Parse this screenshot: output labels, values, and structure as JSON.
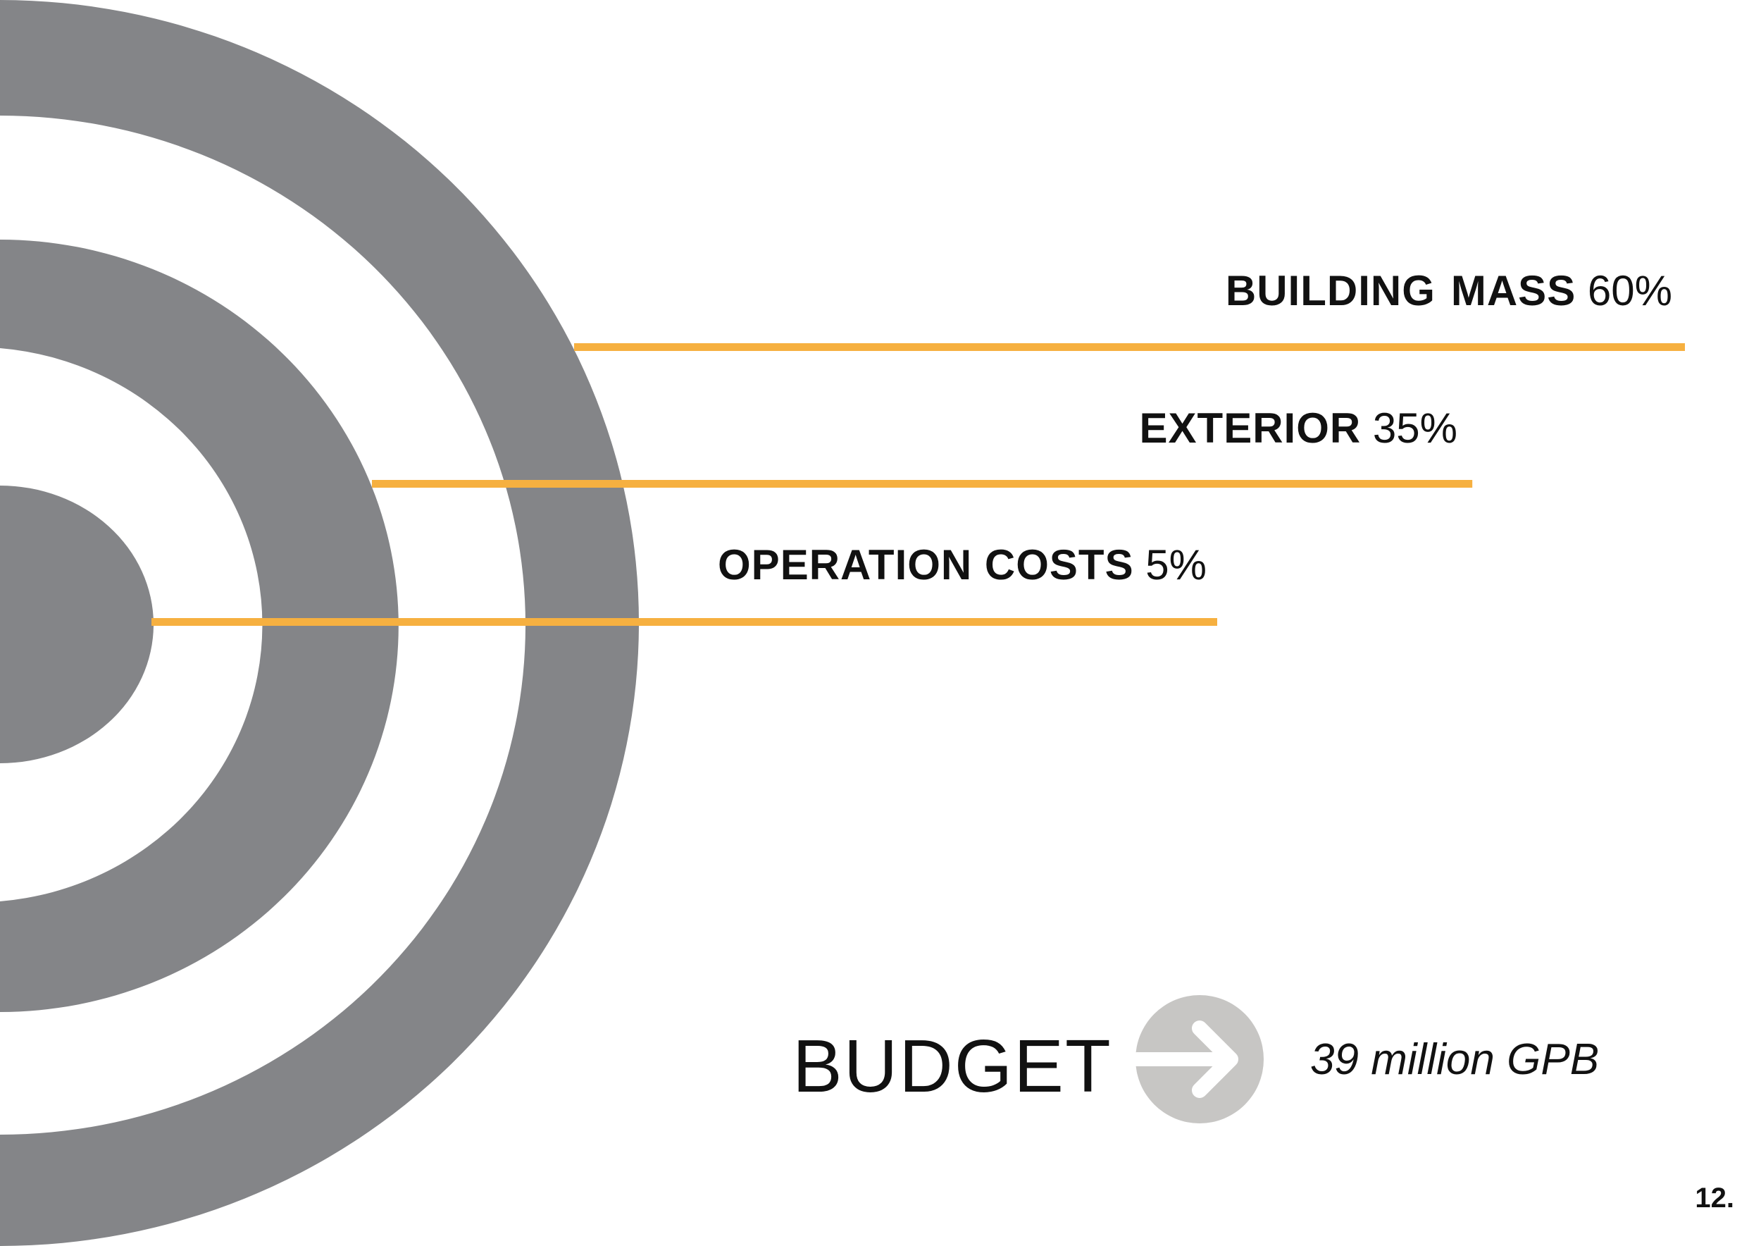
{
  "colors": {
    "rings": "#848588",
    "bars": "#F6B040",
    "arrow_circle": "#C7C6C4",
    "arrow": "#FFFFFF",
    "text": "#111111"
  },
  "chart_data": {
    "type": "bar",
    "orientation": "horizontal",
    "title": "BUDGET",
    "total": "39 million GPB",
    "categories": [
      "BUILDING  MASS",
      "EXTERIOR",
      "OPERATION COSTS"
    ],
    "values": [
      60,
      35,
      5
    ],
    "value_labels": [
      "60%",
      "35%",
      "5%"
    ],
    "unit": "%"
  },
  "labels": {
    "building_mass": {
      "name": "BUILDING",
      "name2": "MASS",
      "value": "60%"
    },
    "exterior": {
      "name": "EXTERIOR",
      "value": "35%"
    },
    "operation": {
      "name": "OPERATION COSTS",
      "value": "5%"
    }
  },
  "budget": {
    "title": "BUDGET",
    "value": "39 million GPB",
    "icon": "arrow-right-circle-icon"
  },
  "page": {
    "number": "12."
  }
}
